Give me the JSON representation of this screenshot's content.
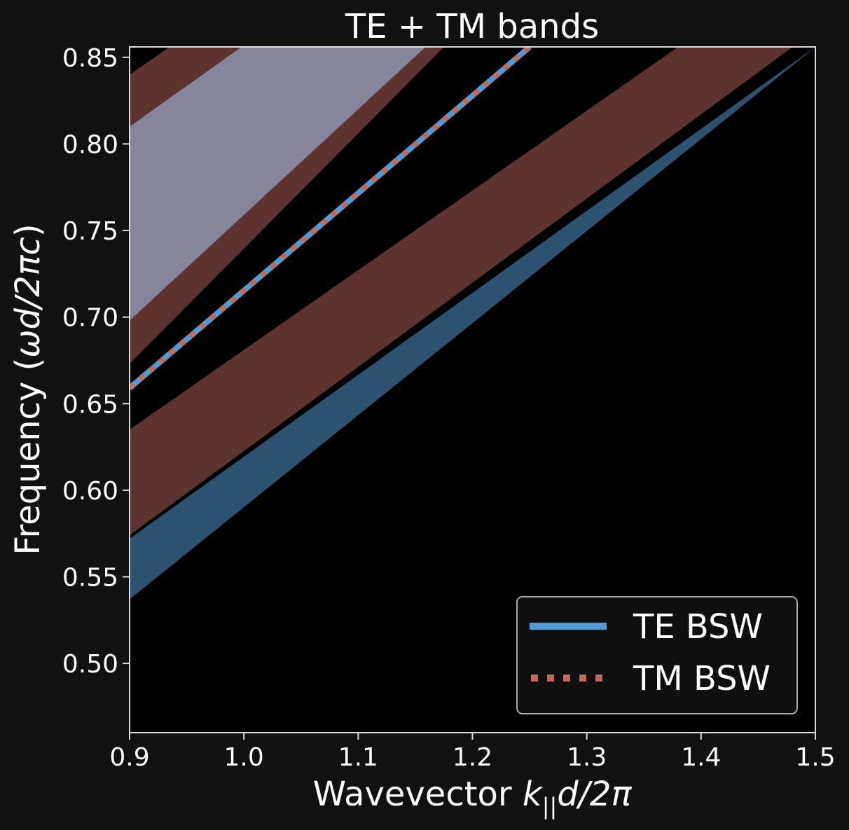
{
  "chart_data": {
    "type": "area",
    "title": "TE + TM bands",
    "xlabel": {
      "prefix": "Wavevector ",
      "k": "k",
      "sub": "||",
      "rest": "d/2π"
    },
    "ylabel": {
      "prefix": "Frequency (",
      "math": "ωd/2πc",
      "suffix": ")"
    },
    "xlim": [
      0.9,
      1.5
    ],
    "ylim": [
      0.46,
      0.856
    ],
    "xticks": [
      "0.9",
      "1.0",
      "1.1",
      "1.2",
      "1.3",
      "1.4",
      "1.5"
    ],
    "xtick_values": [
      0.9,
      1.0,
      1.1,
      1.2,
      1.3,
      1.4,
      1.5
    ],
    "yticks": [
      "0.50",
      "0.55",
      "0.60",
      "0.65",
      "0.70",
      "0.75",
      "0.80",
      "0.85"
    ],
    "ytick_values": [
      0.5,
      0.55,
      0.6,
      0.65,
      0.7,
      0.75,
      0.8,
      0.85
    ],
    "grid": false,
    "background": "#000000",
    "bands": [
      {
        "kind": "TE",
        "color": "#2c5270",
        "points": [
          [
            0.9,
            0.572
          ],
          [
            1.5,
            0.856
          ],
          [
            1.5,
            0.856
          ],
          [
            0.9,
            0.537
          ]
        ]
      },
      {
        "kind": "TM",
        "color": "#5d3330",
        "points": [
          [
            0.9,
            0.635
          ],
          [
            1.38,
            0.856
          ],
          [
            1.48,
            0.856
          ],
          [
            0.9,
            0.574
          ]
        ]
      },
      {
        "kind": "TM",
        "color": "#5d3330",
        "points": [
          [
            0.9,
            0.84
          ],
          [
            0.935,
            0.856
          ],
          [
            1.175,
            0.856
          ],
          [
            0.9,
            0.673
          ]
        ]
      },
      {
        "kind": "TE",
        "color": "#86859b",
        "points": [
          [
            0.9,
            0.81
          ],
          [
            0.998,
            0.856
          ],
          [
            1.159,
            0.856
          ],
          [
            0.9,
            0.698
          ]
        ]
      }
    ],
    "series": [
      {
        "name": "TE BSW",
        "color": "#4f9bd6",
        "style": "solid",
        "x": [
          0.9,
          1.25
        ],
        "y": [
          0.659,
          0.856
        ]
      },
      {
        "name": "TM BSW",
        "color": "#c06a5f",
        "style": "dotted",
        "x": [
          0.9,
          1.25
        ],
        "y": [
          0.659,
          0.856
        ]
      }
    ],
    "legend_position": "lower-right"
  }
}
